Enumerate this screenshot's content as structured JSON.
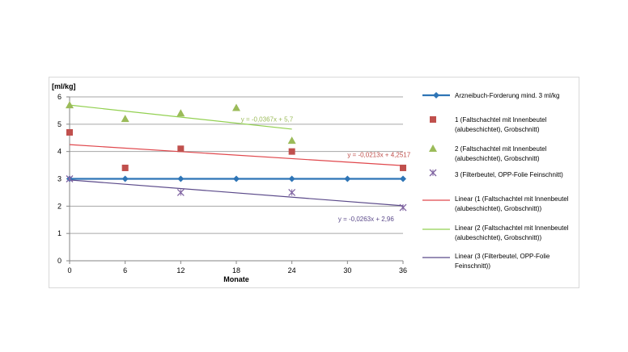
{
  "chart_data": {
    "type": "scatter",
    "title": "",
    "ylabel": "[ml/kg]",
    "xlabel": "Monate",
    "xlim": [
      0,
      36
    ],
    "ylim": [
      0,
      6
    ],
    "x_ticks": [
      0,
      6,
      12,
      18,
      24,
      30,
      36
    ],
    "y_ticks": [
      0,
      1,
      2,
      3,
      4,
      5,
      6
    ],
    "grid": true,
    "legend_position": "right",
    "series": [
      {
        "name": "Arzneibuch-Forderung mind. 3 ml/kg",
        "kind": "line-marker",
        "marker": "diamond",
        "color": "#2e75b6",
        "x": [
          0,
          6,
          12,
          18,
          24,
          30,
          36
        ],
        "y": [
          3,
          3,
          3,
          3,
          3,
          3,
          3
        ]
      },
      {
        "name": "1 (Faltschachtel mit Innenbeutel (alubeschichtet), Grobschnitt)",
        "kind": "scatter",
        "marker": "square",
        "color": "#c0504d",
        "x": [
          0,
          6,
          12,
          24,
          36
        ],
        "y": [
          4.7,
          3.4,
          4.1,
          4.0,
          3.4
        ]
      },
      {
        "name": "2 (Faltschachtel mit Innenbeutel (alubeschichtet), Grobschnitt)",
        "kind": "scatter",
        "marker": "triangle",
        "color": "#9bbb59",
        "x": [
          0,
          6,
          12,
          18,
          24
        ],
        "y": [
          5.7,
          5.2,
          5.4,
          5.6,
          4.4
        ]
      },
      {
        "name": "3 (Filterbeutel, OPP-Folie Feinschnitt)",
        "kind": "scatter",
        "marker": "x",
        "color": "#8064a2",
        "x": [
          0,
          12,
          24,
          36
        ],
        "y": [
          3.0,
          2.5,
          2.5,
          1.95
        ]
      },
      {
        "name": "Linear (1 (Faltschachtel mit Innenbeutel (alubeschichtet), Grobschnitt))",
        "kind": "trend",
        "color": "#e0474c",
        "slope": -0.0213,
        "intercept": 4.2517,
        "x_range": [
          0,
          36
        ]
      },
      {
        "name": "Linear (2 (Faltschachtel mit Innenbeutel (alubeschichtet), Grobschnitt))",
        "kind": "trend",
        "color": "#92d050",
        "slope": -0.0367,
        "intercept": 5.7,
        "x_range": [
          0,
          24
        ]
      },
      {
        "name": "Linear (3 (Filterbeutel, OPP-Folie Feinschnitt))",
        "kind": "trend",
        "color": "#5b4a8a",
        "slope": -0.0263,
        "intercept": 2.96,
        "x_range": [
          0,
          36
        ]
      }
    ],
    "annotations": [
      {
        "text": "y = -0,0367x + 5,7",
        "color": "#9bbb59",
        "x": 18.5,
        "y": 5.1
      },
      {
        "text": "y = -0,0213x + 4,2517",
        "color": "#c0504d",
        "x": 30,
        "y": 3.8
      },
      {
        "text": "y = -0,0263x + 2,96",
        "color": "#5b4a8a",
        "x": 29,
        "y": 1.45
      }
    ],
    "legend": [
      {
        "lines": [
          "Arzneibuch-Forderung mind. 3 ml/kg"
        ],
        "symbol": "line-diamond",
        "color": "#2e75b6"
      },
      {
        "lines": [
          "1 (Faltschachtel mit Innenbeutel",
          "(alubeschichtet), Grobschnitt)"
        ],
        "symbol": "square",
        "color": "#c0504d"
      },
      {
        "lines": [
          "2 (Faltschachtel mit Innenbeutel",
          "(alubeschichtet), Grobschnitt)"
        ],
        "symbol": "triangle",
        "color": "#9bbb59"
      },
      {
        "lines": [
          "3 (Filterbeutel, OPP-Folie Feinschnitt)"
        ],
        "symbol": "x",
        "color": "#8064a2"
      },
      {
        "lines": [
          "Linear (1 (Faltschachtel mit Innenbeutel",
          "(alubeschichtet), Grobschnitt))"
        ],
        "symbol": "line",
        "color": "#e0474c"
      },
      {
        "lines": [
          "Linear (2 (Faltschachtel mit Innenbeutel",
          "(alubeschichtet), Grobschnitt))"
        ],
        "symbol": "line",
        "color": "#92d050"
      },
      {
        "lines": [
          "Linear (3 (Filterbeutel, OPP-Folie",
          "Feinschnitt))"
        ],
        "symbol": "line",
        "color": "#5b4a8a"
      }
    ]
  }
}
